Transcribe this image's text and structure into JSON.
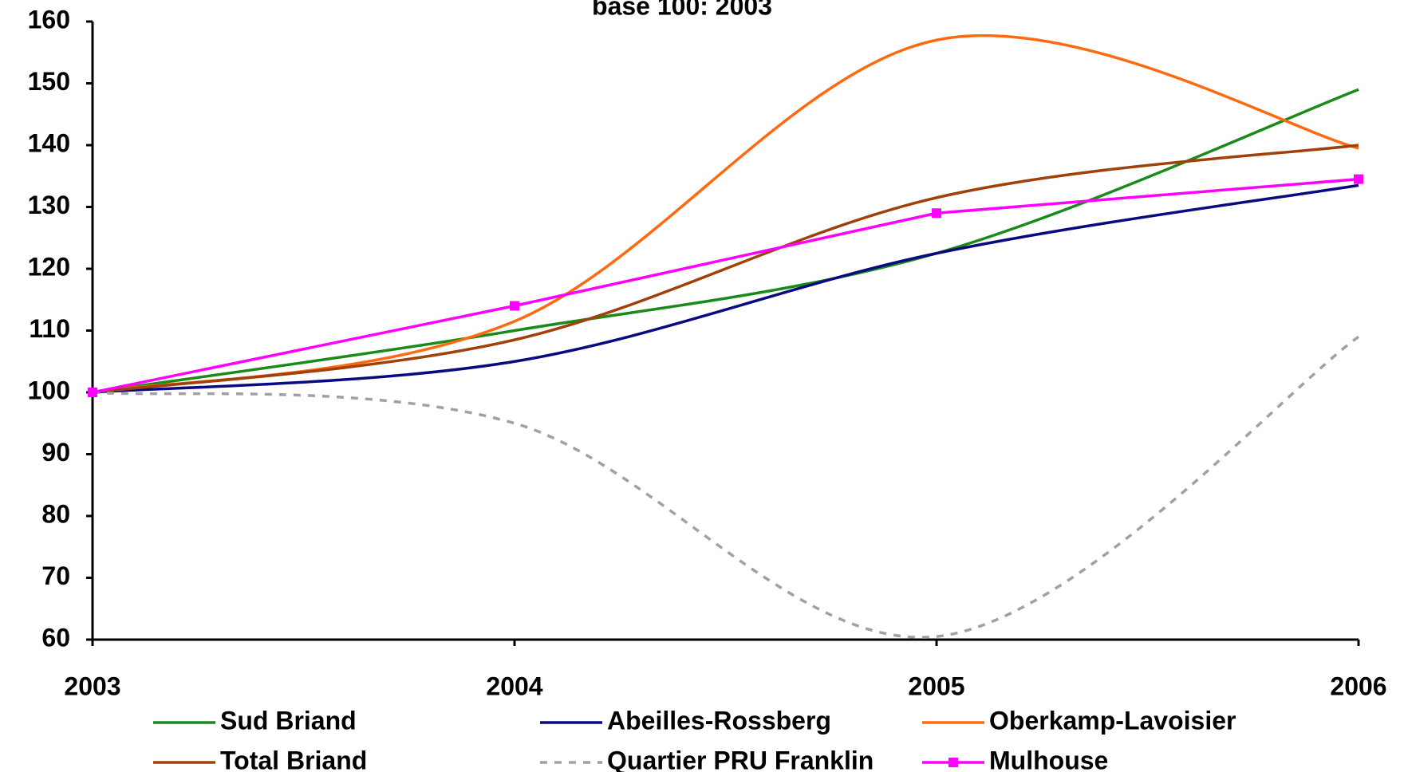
{
  "chart_data": {
    "type": "line",
    "title": "base 100: 2003",
    "categories": [
      "2003",
      "2004",
      "2005",
      "2006"
    ],
    "series": [
      {
        "name": "Sud Briand",
        "color": "#1a8a1a",
        "values": [
          100,
          110,
          122.5,
          149
        ]
      },
      {
        "name": "Abeilles-Rossberg",
        "color": "#0a0a80",
        "values": [
          100,
          105,
          122.5,
          133.5
        ]
      },
      {
        "name": "Oberkamp-Lavoisier",
        "color": "#ff6a10",
        "values": [
          100,
          111.5,
          157,
          139.5
        ]
      },
      {
        "name": "Total Briand",
        "color": "#a0400a",
        "values": [
          100,
          108.5,
          131.5,
          140
        ]
      },
      {
        "name": "Quartier PRU Franklin",
        "color": "#a0a0a8",
        "dashed": true,
        "values": [
          100,
          95,
          60.5,
          109
        ]
      },
      {
        "name": "Mulhouse",
        "color": "#ff00ff",
        "markers": true,
        "smooth": false,
        "values": [
          100,
          114,
          129,
          134.5
        ]
      }
    ],
    "ylim": [
      60,
      160
    ],
    "yticks": [
      60,
      70,
      80,
      90,
      100,
      110,
      120,
      130,
      140,
      150,
      160
    ],
    "grid": false
  }
}
